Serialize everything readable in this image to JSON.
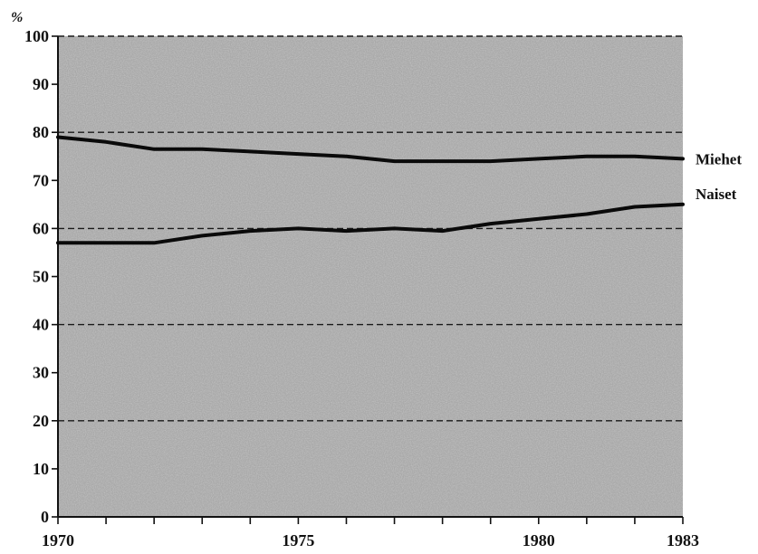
{
  "chart_data": {
    "type": "line",
    "unit_label": "%",
    "xlim": [
      1970,
      1983
    ],
    "ylim": [
      0,
      100
    ],
    "x_ticks": [
      1970,
      1971,
      1972,
      1973,
      1974,
      1975,
      1976,
      1977,
      1978,
      1979,
      1980,
      1981,
      1982,
      1983
    ],
    "x_tick_labels": [
      {
        "value": 1970,
        "label": "1970"
      },
      {
        "value": 1975,
        "label": "1975"
      },
      {
        "value": 1980,
        "label": "1980"
      },
      {
        "value": 1983,
        "label": "1983"
      }
    ],
    "y_ticks": [
      0,
      10,
      20,
      30,
      40,
      50,
      60,
      70,
      80,
      90,
      100
    ],
    "y_tick_labels": [
      "0",
      "10",
      "20",
      "30",
      "40",
      "50",
      "60",
      "70",
      "80",
      "90",
      "100"
    ],
    "gridlines_y": [
      20,
      40,
      60,
      80,
      100
    ],
    "x": [
      1970,
      1971,
      1972,
      1973,
      1974,
      1975,
      1976,
      1977,
      1978,
      1979,
      1980,
      1981,
      1982,
      1983
    ],
    "series": [
      {
        "name": "Miehet",
        "values": [
          79,
          78,
          76.5,
          76.5,
          76,
          75.5,
          75,
          74,
          74,
          74,
          74.5,
          75,
          75,
          74.5
        ]
      },
      {
        "name": "Naiset",
        "values": [
          57,
          57,
          57,
          58.5,
          59.5,
          60,
          59.5,
          60,
          59.5,
          61,
          62,
          63,
          64.5,
          65
        ]
      }
    ],
    "colors": {
      "background": "#a9a9a9",
      "line": "#0a0a0a",
      "grid": "#1a1a1a"
    }
  }
}
